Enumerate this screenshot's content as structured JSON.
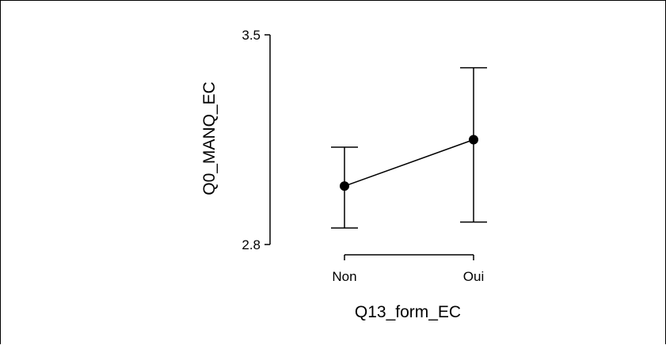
{
  "chart_data": {
    "type": "line",
    "xlabel": "Q13_form_EC",
    "ylabel": "Q0_MANQ_EC",
    "categories": [
      "Non",
      "Oui"
    ],
    "ylim": [
      2.8,
      3.5
    ],
    "yticks": [
      "2.8",
      "3.5"
    ],
    "grid": false,
    "series": [
      {
        "values": [
          2.995,
          3.15
        ],
        "ci_lower": [
          2.855,
          2.875
        ],
        "ci_upper": [
          3.125,
          3.39
        ]
      }
    ]
  }
}
